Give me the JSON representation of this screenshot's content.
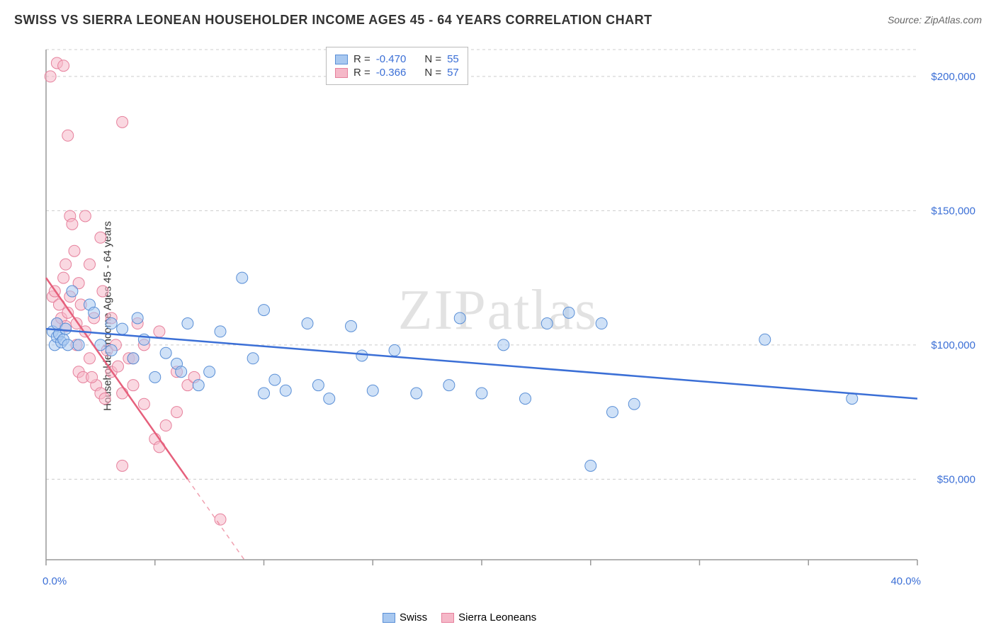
{
  "title": "SWISS VS SIERRA LEONEAN HOUSEHOLDER INCOME AGES 45 - 64 YEARS CORRELATION CHART",
  "source": "Source: ZipAtlas.com",
  "ylabel": "Householder Income Ages 45 - 64 years",
  "watermark": "ZIPatlas",
  "chart": {
    "type": "scatter",
    "background_color": "#ffffff",
    "grid_color": "#cccccc",
    "grid_dash": "4,4",
    "axis_color": "#999999",
    "xlim": [
      0,
      40
    ],
    "ylim": [
      20000,
      210000
    ],
    "yticks": [
      50000,
      100000,
      150000,
      200000
    ],
    "ytick_labels": [
      "$50,000",
      "$100,000",
      "$150,000",
      "$200,000"
    ],
    "xtick_positions": [
      0,
      5,
      10,
      15,
      20,
      25,
      30,
      35,
      40
    ],
    "xaxis_start_label": "0.0%",
    "xaxis_end_label": "40.0%",
    "marker_radius": 8,
    "marker_opacity": 0.55,
    "trend_line_width": 2.5
  },
  "series": {
    "swiss": {
      "label": "Swiss",
      "fill_color": "#a8c8f0",
      "stroke_color": "#5a8fd6",
      "line_color": "#3b6fd6",
      "R": "-0.470",
      "N": "55",
      "trend": {
        "x1": 0,
        "y1": 106000,
        "x2": 40,
        "y2": 80000
      },
      "points": [
        [
          0.3,
          105000
        ],
        [
          0.4,
          100000
        ],
        [
          0.5,
          108000
        ],
        [
          0.5,
          103000
        ],
        [
          0.6,
          104000
        ],
        [
          0.7,
          101000
        ],
        [
          0.8,
          102000
        ],
        [
          0.9,
          106000
        ],
        [
          1.0,
          100000
        ],
        [
          1.2,
          120000
        ],
        [
          1.5,
          100000
        ],
        [
          2.0,
          115000
        ],
        [
          2.2,
          112000
        ],
        [
          2.5,
          100000
        ],
        [
          3.0,
          98000
        ],
        [
          3.0,
          108000
        ],
        [
          3.5,
          106000
        ],
        [
          4.0,
          95000
        ],
        [
          4.2,
          110000
        ],
        [
          4.5,
          102000
        ],
        [
          5.0,
          88000
        ],
        [
          5.5,
          97000
        ],
        [
          6.0,
          93000
        ],
        [
          6.2,
          90000
        ],
        [
          6.5,
          108000
        ],
        [
          7.0,
          85000
        ],
        [
          7.5,
          90000
        ],
        [
          8.0,
          105000
        ],
        [
          9.0,
          125000
        ],
        [
          9.5,
          95000
        ],
        [
          10.0,
          113000
        ],
        [
          10.0,
          82000
        ],
        [
          10.5,
          87000
        ],
        [
          11.0,
          83000
        ],
        [
          12.0,
          108000
        ],
        [
          12.5,
          85000
        ],
        [
          13.0,
          80000
        ],
        [
          14.0,
          107000
        ],
        [
          14.5,
          96000
        ],
        [
          15.0,
          83000
        ],
        [
          16.0,
          98000
        ],
        [
          17.0,
          82000
        ],
        [
          18.5,
          85000
        ],
        [
          19.0,
          110000
        ],
        [
          20.0,
          82000
        ],
        [
          21.0,
          100000
        ],
        [
          22.0,
          80000
        ],
        [
          23.0,
          108000
        ],
        [
          24.0,
          112000
        ],
        [
          25.0,
          55000
        ],
        [
          25.5,
          108000
        ],
        [
          26.0,
          75000
        ],
        [
          27.0,
          78000
        ],
        [
          33.0,
          102000
        ],
        [
          37.0,
          80000
        ]
      ]
    },
    "sierra": {
      "label": "Sierra Leoneans",
      "fill_color": "#f5b8c8",
      "stroke_color": "#e6809c",
      "line_color": "#e6607c",
      "R": "-0.366",
      "N": "57",
      "trend": {
        "x1": 0,
        "y1": 125000,
        "x2": 6.5,
        "y2": 50000
      },
      "trend_dashed_extend": {
        "x1": 6.5,
        "y1": 50000,
        "x2": 15,
        "y2": -48000
      },
      "points": [
        [
          0.3,
          118000
        ],
        [
          0.4,
          120000
        ],
        [
          0.5,
          108000
        ],
        [
          0.5,
          205000
        ],
        [
          0.6,
          115000
        ],
        [
          0.7,
          110000
        ],
        [
          0.8,
          204000
        ],
        [
          0.8,
          125000
        ],
        [
          0.9,
          107000
        ],
        [
          1.0,
          178000
        ],
        [
          1.0,
          112000
        ],
        [
          1.1,
          148000
        ],
        [
          1.2,
          145000
        ],
        [
          1.3,
          135000
        ],
        [
          1.4,
          108000
        ],
        [
          1.5,
          123000
        ],
        [
          1.5,
          90000
        ],
        [
          1.6,
          115000
        ],
        [
          1.7,
          88000
        ],
        [
          1.8,
          148000
        ],
        [
          1.8,
          105000
        ],
        [
          2.0,
          95000
        ],
        [
          2.0,
          130000
        ],
        [
          2.2,
          110000
        ],
        [
          2.3,
          85000
        ],
        [
          2.5,
          140000
        ],
        [
          2.5,
          82000
        ],
        [
          2.7,
          80000
        ],
        [
          2.8,
          98000
        ],
        [
          3.0,
          110000
        ],
        [
          3.0,
          90000
        ],
        [
          3.2,
          100000
        ],
        [
          3.5,
          183000
        ],
        [
          3.5,
          82000
        ],
        [
          3.5,
          55000
        ],
        [
          3.8,
          95000
        ],
        [
          4.0,
          85000
        ],
        [
          4.2,
          108000
        ],
        [
          4.5,
          78000
        ],
        [
          4.5,
          100000
        ],
        [
          5.0,
          65000
        ],
        [
          5.5,
          70000
        ],
        [
          6.0,
          75000
        ],
        [
          6.0,
          90000
        ],
        [
          6.5,
          85000
        ],
        [
          0.2,
          200000
        ],
        [
          0.9,
          130000
        ],
        [
          1.1,
          118000
        ],
        [
          1.4,
          100000
        ],
        [
          2.1,
          88000
        ],
        [
          2.6,
          120000
        ],
        [
          3.3,
          92000
        ],
        [
          4.0,
          95000
        ],
        [
          5.2,
          105000
        ],
        [
          5.2,
          62000
        ],
        [
          8.0,
          35000
        ],
        [
          6.8,
          88000
        ]
      ]
    }
  },
  "stat_labels": {
    "R": "R =",
    "N": "N ="
  }
}
